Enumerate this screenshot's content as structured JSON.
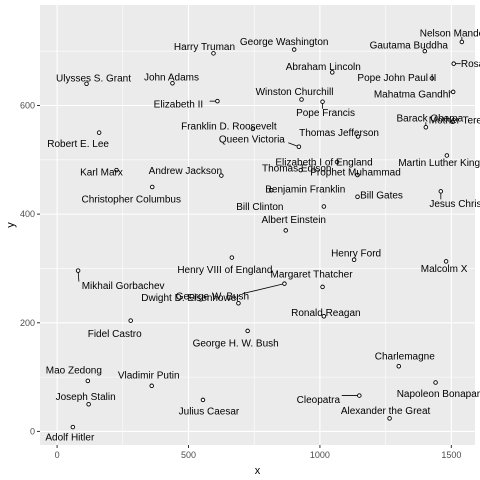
{
  "chart_data": {
    "type": "scatter",
    "xlabel": "x",
    "ylabel": "y",
    "xlim": [
      -65,
      1590
    ],
    "ylim": [
      -25,
      785
    ],
    "xticks": [
      0,
      500,
      1000,
      1500
    ],
    "yticks": [
      0,
      200,
      400,
      600
    ],
    "grid": true,
    "points": [
      {
        "name": "Nelson Mandela",
        "x": 1540,
        "y": 717
      },
      {
        "name": "George Washington",
        "x": 902,
        "y": 703
      },
      {
        "name": "Gautama Buddha",
        "x": 1399,
        "y": 700
      },
      {
        "name": "Harry Truman",
        "x": 595,
        "y": 696
      },
      {
        "name": "Rosa Parks",
        "x": 1509,
        "y": 677
      },
      {
        "name": "Abraham Lincoln",
        "x": 1047,
        "y": 661
      },
      {
        "name": "Ulysses S. Grant",
        "x": 112,
        "y": 640
      },
      {
        "name": "John Adams",
        "x": 439,
        "y": 641
      },
      {
        "name": "Pope John Paul II",
        "x": 1426,
        "y": 650
      },
      {
        "name": "Winston Churchill",
        "x": 930,
        "y": 611
      },
      {
        "name": "Elizabeth II",
        "x": 610,
        "y": 608
      },
      {
        "name": "Mahatma Gandhi",
        "x": 1507,
        "y": 625
      },
      {
        "name": "Pope Francis",
        "x": 1010,
        "y": 607
      },
      {
        "name": "Mother Teresa",
        "x": 1505,
        "y": 570
      },
      {
        "name": "Franklin D. Roosevelt",
        "x": 745,
        "y": 557
      },
      {
        "name": "Thomas Jefferson",
        "x": 1145,
        "y": 543
      },
      {
        "name": "Queen Victoria",
        "x": 920,
        "y": 524
      },
      {
        "name": "Barack Obama",
        "x": 1403,
        "y": 560
      },
      {
        "name": "Robert E. Lee",
        "x": 160,
        "y": 550
      },
      {
        "name": "Elizabeth I of England",
        "x": 1065,
        "y": 496
      },
      {
        "name": "Martin Luther King Jr.",
        "x": 1483,
        "y": 508
      },
      {
        "name": "Karl Marx",
        "x": 226,
        "y": 481
      },
      {
        "name": "Andrew Jackson",
        "x": 625,
        "y": 471
      },
      {
        "name": "Prophet Muhammad",
        "x": 1143,
        "y": 472
      },
      {
        "name": "Thomas Edison",
        "x": 927,
        "y": 481
      },
      {
        "name": "Christopher Columbus",
        "x": 362,
        "y": 450
      },
      {
        "name": "Benjamin Franklin",
        "x": 815,
        "y": 444
      },
      {
        "name": "Bill Gates",
        "x": 1143,
        "y": 432
      },
      {
        "name": "Jesus Christ",
        "x": 1460,
        "y": 442
      },
      {
        "name": "Bill Clinton",
        "x": 1015,
        "y": 414
      },
      {
        "name": "Albert Einstein",
        "x": 870,
        "y": 370
      },
      {
        "name": "Henry VIII of England",
        "x": 665,
        "y": 320
      },
      {
        "name": "Henry Ford",
        "x": 1130,
        "y": 316
      },
      {
        "name": "Malcolm X",
        "x": 1480,
        "y": 313
      },
      {
        "name": "Dwight D. Eisenhower",
        "x": 865,
        "y": 272
      },
      {
        "name": "Mikhail Gorbachev",
        "x": 80,
        "y": 296
      },
      {
        "name": "Margaret Thatcher",
        "x": 1010,
        "y": 266
      },
      {
        "name": "George W. Bush",
        "x": 690,
        "y": 236
      },
      {
        "name": "Ronald Reagan",
        "x": 1015,
        "y": 212
      },
      {
        "name": "Fidel Castro",
        "x": 280,
        "y": 204
      },
      {
        "name": "George H. W. Bush",
        "x": 725,
        "y": 185
      },
      {
        "name": "Charlemagne",
        "x": 1300,
        "y": 120
      },
      {
        "name": "Mao Zedong",
        "x": 117,
        "y": 93
      },
      {
        "name": "Vladimir Putin",
        "x": 360,
        "y": 84
      },
      {
        "name": "Napoleon Bonaparte",
        "x": 1440,
        "y": 90
      },
      {
        "name": "Joseph Stalin",
        "x": 120,
        "y": 50
      },
      {
        "name": "Julius Caesar",
        "x": 555,
        "y": 58
      },
      {
        "name": "Cleopatra",
        "x": 1150,
        "y": 66
      },
      {
        "name": "Alexander the Great",
        "x": 1265,
        "y": 24
      },
      {
        "name": "Adolf Hitler",
        "x": 60,
        "y": 8
      }
    ]
  }
}
